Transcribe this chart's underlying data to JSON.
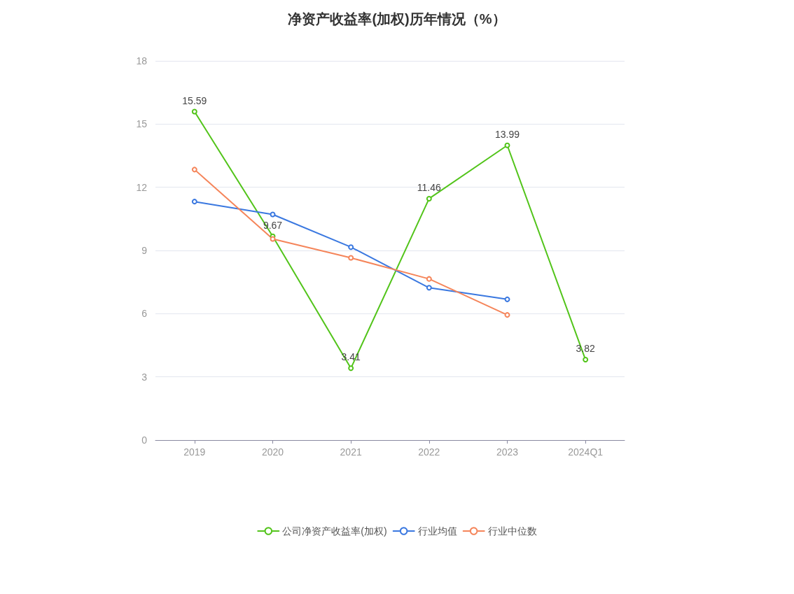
{
  "chart_data": {
    "type": "line",
    "title": "净资产收益率(加权)历年情况（%）",
    "categories": [
      "2019",
      "2020",
      "2021",
      "2022",
      "2023",
      "2024Q1"
    ],
    "series": [
      {
        "name": "公司净资产收益率(加权)",
        "color": "#52c41a",
        "values": [
          15.59,
          9.67,
          3.41,
          11.46,
          13.99,
          3.82
        ],
        "value_labels": [
          "15.59",
          "9.67",
          "3.41",
          "11.46",
          "13.99",
          "3.82"
        ]
      },
      {
        "name": "行业均值",
        "color": "#3a78e0",
        "values": [
          11.32,
          10.71,
          9.16,
          7.23,
          6.68,
          null
        ]
      },
      {
        "name": "行业中位数",
        "color": "#f5855a",
        "values": [
          12.84,
          9.55,
          8.65,
          7.65,
          5.94,
          null
        ]
      }
    ],
    "ylim": [
      0,
      18
    ],
    "yticks": [
      0,
      3,
      6,
      9,
      12,
      15,
      18
    ],
    "grid": "y",
    "legend": "bottom",
    "marker": "circle",
    "line_style": "solid"
  }
}
